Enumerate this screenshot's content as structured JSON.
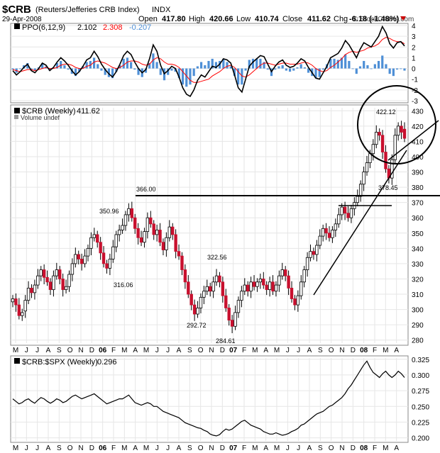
{
  "header": {
    "symbol": "$CRB",
    "name": "(Reuters/Jefferies CRB Index)",
    "exchange": "INDX",
    "date": "29-Apr-2008",
    "open_label": "Open",
    "open": "417.80",
    "high_label": "High",
    "high": "420.66",
    "low_label": "Low",
    "low": "410.74",
    "close_label": "Close",
    "close": "411.62",
    "chg_label": "Chg",
    "chg": "-6.18 (-1.48%)",
    "copyright": "© StockCharts.com"
  },
  "chart_data": [
    {
      "type": "line",
      "panel": "ppo",
      "legend": {
        "label": "PPO(6,12,9)",
        "ppo": "2.102",
        "signal": "2.308",
        "hist": "-0.207"
      },
      "ylim": [
        -3,
        4
      ],
      "yticks": [
        "4",
        "3",
        "2",
        "1",
        "0",
        "-1",
        "-2",
        "-3"
      ],
      "series": [
        {
          "name": "PPO",
          "color": "#000000",
          "values": [
            -0.2,
            -0.6,
            -0.3,
            0.1,
            0.4,
            -0.2,
            -0.4,
            0.0,
            0.5,
            0.3,
            -0.2,
            0.1,
            0.6,
            1.0,
            0.7,
            0.3,
            -0.2,
            -0.6,
            -0.3,
            0.2,
            0.8,
            1.0,
            1.6,
            1.1,
            0.4,
            -0.1,
            -0.5,
            -0.8,
            -0.3,
            0.4,
            1.2,
            1.6,
            1.3,
            0.6,
            0.0,
            -0.4,
            -0.1,
            0.9,
            2.2,
            1.6,
            0.3,
            -0.5,
            -0.2,
            0.2,
            0.0,
            -0.8,
            -1.8,
            -2.4,
            -2.6,
            -2.0,
            -1.1,
            -0.6,
            -0.8,
            -0.3,
            0.2,
            0.1,
            0.4,
            0.9,
            0.8,
            0.5,
            -0.6,
            -1.8,
            -2.2,
            -1.0,
            0.2,
            0.6,
            0.9,
            1.2,
            1.1,
            0.4,
            -0.3,
            0.2,
            0.6,
            0.8,
            0.3,
            0.1,
            0.2,
            0.5,
            0.9,
            0.7,
            0.1,
            -0.4,
            -0.9,
            -1.0,
            -0.4,
            0.2,
            1.0,
            1.2,
            1.4,
            1.9,
            2.6,
            2.2,
            1.6,
            1.0,
            1.8,
            2.4,
            2.2,
            2.0,
            2.5,
            3.0,
            3.9,
            3.3,
            2.3,
            1.9,
            2.4,
            2.5,
            2.1
          ]
        },
        {
          "name": "Signal",
          "color": "#ff0000",
          "values": [
            -0.1,
            -0.2,
            -0.3,
            -0.2,
            -0.1,
            -0.1,
            -0.2,
            -0.1,
            0.0,
            0.1,
            0.0,
            0.0,
            0.1,
            0.3,
            0.4,
            0.4,
            0.3,
            0.1,
            0.0,
            0.0,
            0.2,
            0.3,
            0.6,
            0.7,
            0.6,
            0.5,
            0.3,
            0.1,
            0.0,
            0.1,
            0.3,
            0.6,
            0.7,
            0.7,
            0.6,
            0.4,
            0.3,
            0.4,
            0.8,
            1.0,
            0.9,
            0.6,
            0.4,
            0.4,
            0.3,
            0.1,
            -0.3,
            -0.7,
            -1.1,
            -1.3,
            -1.3,
            -1.2,
            -1.1,
            -1.0,
            -0.7,
            -0.5,
            -0.3,
            0.0,
            0.2,
            0.3,
            0.1,
            -0.3,
            -0.7,
            -0.8,
            -0.6,
            -0.3,
            0.0,
            0.3,
            0.5,
            0.5,
            0.4,
            0.3,
            0.4,
            0.5,
            0.5,
            0.4,
            0.4,
            0.4,
            0.5,
            0.6,
            0.5,
            0.3,
            0.0,
            -0.2,
            -0.3,
            -0.2,
            0.1,
            0.3,
            0.6,
            0.9,
            1.3,
            1.5,
            1.6,
            1.5,
            1.6,
            1.7,
            1.9,
            2.0,
            2.1,
            2.3,
            2.7,
            2.9,
            2.8,
            2.6,
            2.5,
            2.5,
            2.3
          ]
        }
      ]
    },
    {
      "type": "candlestick",
      "panel": "price",
      "legend": {
        "label": "$CRB (Weekly)",
        "value": "411.62",
        "volume": "Volume undef"
      },
      "ylim": [
        278,
        432
      ],
      "yticks": [
        "430",
        "420",
        "410",
        "400",
        "390",
        "380",
        "370",
        "360",
        "350",
        "340",
        "330",
        "320",
        "310",
        "300",
        "290",
        "280"
      ],
      "xticks": [
        "M",
        "J",
        "J",
        "A",
        "S",
        "O",
        "N",
        "D",
        "06",
        "F",
        "M",
        "A",
        "M",
        "J",
        "J",
        "A",
        "S",
        "O",
        "N",
        "D",
        "07",
        "F",
        "M",
        "A",
        "M",
        "J",
        "J",
        "A",
        "S",
        "O",
        "N",
        "D",
        "08",
        "F",
        "M",
        "A"
      ],
      "annotations": [
        "366.00",
        "350.96",
        "316.06",
        "322.56",
        "292.72",
        "284.61",
        "422.12",
        "378.45"
      ],
      "close": [
        307,
        303,
        296,
        298,
        306,
        314,
        311,
        316,
        322,
        326,
        321,
        318,
        313,
        322,
        326,
        320,
        313,
        315,
        323,
        330,
        336,
        333,
        330,
        335,
        340,
        347,
        349,
        344,
        337,
        330,
        327,
        333,
        341,
        349,
        352,
        355,
        362,
        366,
        360,
        353,
        347,
        344,
        351,
        360,
        356,
        349,
        352,
        344,
        339,
        347,
        354,
        349,
        338,
        335,
        326,
        318,
        310,
        303,
        297,
        301,
        308,
        312,
        315,
        312,
        318,
        322,
        318,
        309,
        301,
        293,
        289,
        298,
        306,
        312,
        316,
        312,
        318,
        315,
        318,
        320,
        316,
        313,
        318,
        312,
        316,
        322,
        326,
        322,
        314,
        307,
        303,
        309,
        318,
        326,
        334,
        338,
        336,
        342,
        348,
        353,
        350,
        347,
        352,
        356,
        362,
        367,
        363,
        360,
        366,
        370,
        374,
        382,
        390,
        396,
        402,
        408,
        416,
        414,
        403,
        392,
        386,
        398,
        414,
        420,
        416,
        412
      ],
      "open": [
        305,
        307,
        303,
        296,
        299,
        306,
        314,
        311,
        316,
        322,
        326,
        321,
        318,
        313,
        322,
        326,
        320,
        313,
        315,
        323,
        330,
        336,
        333,
        330,
        335,
        340,
        347,
        349,
        344,
        337,
        330,
        327,
        333,
        341,
        349,
        352,
        355,
        362,
        366,
        360,
        353,
        347,
        344,
        351,
        360,
        356,
        349,
        352,
        344,
        339,
        347,
        354,
        349,
        338,
        335,
        326,
        318,
        310,
        303,
        297,
        301,
        308,
        312,
        315,
        312,
        318,
        322,
        318,
        309,
        301,
        293,
        289,
        298,
        306,
        312,
        316,
        312,
        318,
        315,
        318,
        320,
        316,
        313,
        318,
        312,
        316,
        322,
        326,
        322,
        314,
        307,
        303,
        309,
        318,
        326,
        334,
        338,
        336,
        342,
        348,
        353,
        350,
        347,
        352,
        356,
        362,
        367,
        363,
        360,
        366,
        370,
        374,
        382,
        390,
        396,
        402,
        408,
        416,
        414,
        403,
        392,
        386,
        398,
        414,
        420,
        418
      ]
    },
    {
      "type": "line",
      "panel": "ratio",
      "legend": {
        "label": "$CRB:$SPX (Weekly)",
        "value": "0.296"
      },
      "ylim": [
        0.195,
        0.327
      ],
      "yticks": [
        "0.325",
        "0.300",
        "0.275",
        "0.250",
        "0.225",
        "0.200"
      ],
      "xticks": [
        "M",
        "J",
        "J",
        "A",
        "S",
        "O",
        "N",
        "D",
        "06",
        "F",
        "M",
        "A",
        "M",
        "J",
        "J",
        "A",
        "S",
        "O",
        "N",
        "D",
        "07",
        "F",
        "M",
        "A",
        "M",
        "J",
        "J",
        "A",
        "S",
        "O",
        "N",
        "D",
        "08",
        "F",
        "M",
        "A"
      ],
      "values": [
        0.262,
        0.258,
        0.254,
        0.256,
        0.26,
        0.262,
        0.258,
        0.255,
        0.26,
        0.264,
        0.262,
        0.258,
        0.255,
        0.258,
        0.262,
        0.26,
        0.256,
        0.258,
        0.262,
        0.266,
        0.268,
        0.265,
        0.262,
        0.264,
        0.266,
        0.268,
        0.27,
        0.266,
        0.262,
        0.258,
        0.254,
        0.256,
        0.258,
        0.26,
        0.262,
        0.262,
        0.265,
        0.268,
        0.262,
        0.256,
        0.254,
        0.252,
        0.254,
        0.256,
        0.254,
        0.25,
        0.25,
        0.246,
        0.242,
        0.24,
        0.238,
        0.236,
        0.234,
        0.232,
        0.228,
        0.224,
        0.222,
        0.22,
        0.218,
        0.216,
        0.215,
        0.212,
        0.21,
        0.206,
        0.204,
        0.203,
        0.205,
        0.21,
        0.214,
        0.212,
        0.214,
        0.218,
        0.222,
        0.226,
        0.228,
        0.224,
        0.22,
        0.218,
        0.216,
        0.214,
        0.21,
        0.208,
        0.206,
        0.206,
        0.208,
        0.206,
        0.204,
        0.205,
        0.207,
        0.21,
        0.212,
        0.215,
        0.22,
        0.222,
        0.226,
        0.23,
        0.234,
        0.238,
        0.24,
        0.242,
        0.246,
        0.25,
        0.252,
        0.256,
        0.26,
        0.264,
        0.27,
        0.278,
        0.284,
        0.292,
        0.3,
        0.308,
        0.316,
        0.322,
        0.312,
        0.304,
        0.3,
        0.296,
        0.302,
        0.306,
        0.3,
        0.296,
        0.3,
        0.306,
        0.302,
        0.296
      ]
    }
  ]
}
